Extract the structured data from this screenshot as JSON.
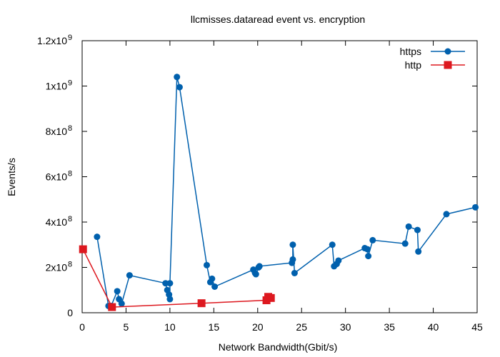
{
  "chart_data": {
    "type": "line",
    "title": "llcmisses.dataread event vs. encryption",
    "xlabel": "Network Bandwidth(Gbit/s)",
    "ylabel": "Events/s",
    "xlim": [
      0,
      45
    ],
    "ylim": [
      0,
      1200000000
    ],
    "xticks": [
      0,
      5,
      10,
      15,
      20,
      25,
      30,
      35,
      40,
      45
    ],
    "yticks": [
      {
        "value": 0,
        "label": "0",
        "exp": ""
      },
      {
        "value": 200000000,
        "label": "2x10",
        "exp": "8"
      },
      {
        "value": 400000000,
        "label": "4x10",
        "exp": "8"
      },
      {
        "value": 600000000,
        "label": "6x10",
        "exp": "8"
      },
      {
        "value": 800000000,
        "label": "8x10",
        "exp": "8"
      },
      {
        "value": 1000000000,
        "label": "1x10",
        "exp": "9"
      },
      {
        "value": 1200000000,
        "label": "1.2x10",
        "exp": "9"
      }
    ],
    "grid": false,
    "legend_position": "top-right",
    "series": [
      {
        "name": "https",
        "color": "#0060ad",
        "marker": "circle",
        "x": [
          1.7,
          3.0,
          3.3,
          4.0,
          4.2,
          4.5,
          5.4,
          9.5,
          9.7,
          9.9,
          10.0,
          10.0,
          10.8,
          11.1,
          14.2,
          14.6,
          14.8,
          15.1,
          19.5,
          19.7,
          19.8,
          20.1,
          20.2,
          23.9,
          24.0,
          24.0,
          24.2,
          28.5,
          28.7,
          29.0,
          29.2,
          32.2,
          32.5,
          32.6,
          33.1,
          36.8,
          37.2,
          38.2,
          38.3,
          41.5,
          44.8
        ],
        "y": [
          335000000,
          30000000,
          30000000,
          95000000,
          60000000,
          40000000,
          165000000,
          130000000,
          100000000,
          80000000,
          60000000,
          130000000,
          1040000000,
          995000000,
          210000000,
          135000000,
          150000000,
          115000000,
          190000000,
          175000000,
          170000000,
          200000000,
          205000000,
          220000000,
          235000000,
          300000000,
          175000000,
          300000000,
          205000000,
          215000000,
          230000000,
          285000000,
          280000000,
          250000000,
          320000000,
          305000000,
          380000000,
          365000000,
          270000000,
          435000000,
          465000000
        ]
      },
      {
        "name": "http",
        "color": "#dd181f",
        "marker": "square",
        "x": [
          0.1,
          3.4,
          13.6,
          21.0,
          21.2,
          21.5
        ],
        "y": [
          280000000,
          25000000,
          42000000,
          55000000,
          70000000,
          65000000
        ]
      }
    ]
  }
}
